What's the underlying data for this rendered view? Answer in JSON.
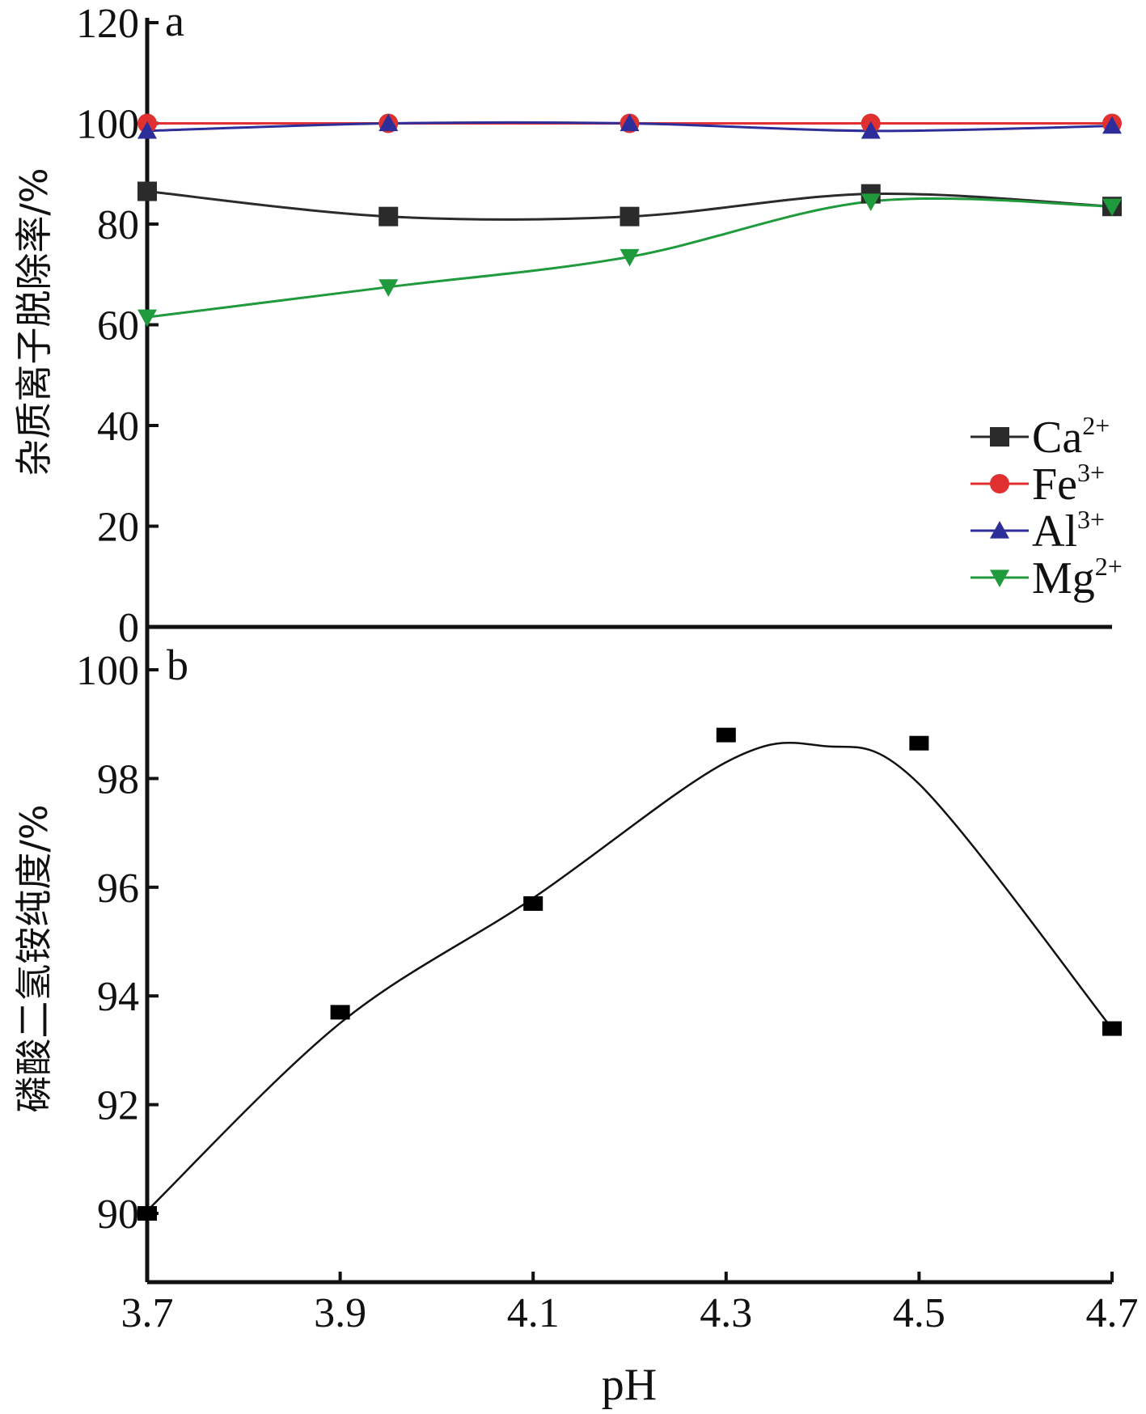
{
  "chart_data": [
    {
      "type": "line",
      "panel": "a",
      "title": "",
      "xlabel": "",
      "ylabel": "杂质离子脱除率/%",
      "xlim": [
        3.7,
        4.7
      ],
      "ylim": [
        0,
        120
      ],
      "y_ticks": [
        0,
        20,
        40,
        60,
        80,
        100,
        120
      ],
      "legend_position": "right",
      "x": [
        3.7,
        3.95,
        4.2,
        4.45,
        4.7
      ],
      "series": [
        {
          "name": "Ca",
          "charge": "2+",
          "marker": "square",
          "color": "#2b2b2b",
          "values": [
            86.5,
            81.5,
            81.5,
            86.0,
            83.5
          ]
        },
        {
          "name": "Fe",
          "charge": "3+",
          "marker": "circle",
          "color": "#e03030",
          "values": [
            100,
            100,
            100,
            100,
            100
          ]
        },
        {
          "name": "Al",
          "charge": "3+",
          "marker": "triangle-up",
          "color": "#2e2e9a",
          "values": [
            98.5,
            100,
            100,
            98.5,
            99.5
          ]
        },
        {
          "name": "Mg",
          "charge": "2+",
          "marker": "triangle-down",
          "color": "#1f9a3c",
          "values": [
            61.5,
            67.5,
            73.5,
            84.5,
            83.5
          ]
        }
      ]
    },
    {
      "type": "scatter",
      "panel": "b",
      "title": "",
      "xlabel": "pH",
      "ylabel": "磷酸二氢铵纯度/%",
      "xlim": [
        3.7,
        4.7
      ],
      "ylim": [
        89,
        100
      ],
      "x_ticks": [
        3.7,
        3.9,
        4.1,
        4.3,
        4.5,
        4.7
      ],
      "x_tick_labels": [
        "3.7",
        "3.9",
        "4.1",
        "4.3",
        "4.5",
        "4.7"
      ],
      "y_ticks": [
        90,
        92,
        94,
        96,
        98,
        100
      ],
      "fit_curve": true,
      "series": [
        {
          "name": "",
          "marker": "square",
          "color": "#000000",
          "x": [
            3.7,
            3.9,
            4.1,
            4.3,
            4.5,
            4.7
          ],
          "values": [
            90.0,
            93.7,
            95.7,
            98.8,
            98.65,
            93.4
          ]
        }
      ]
    }
  ]
}
